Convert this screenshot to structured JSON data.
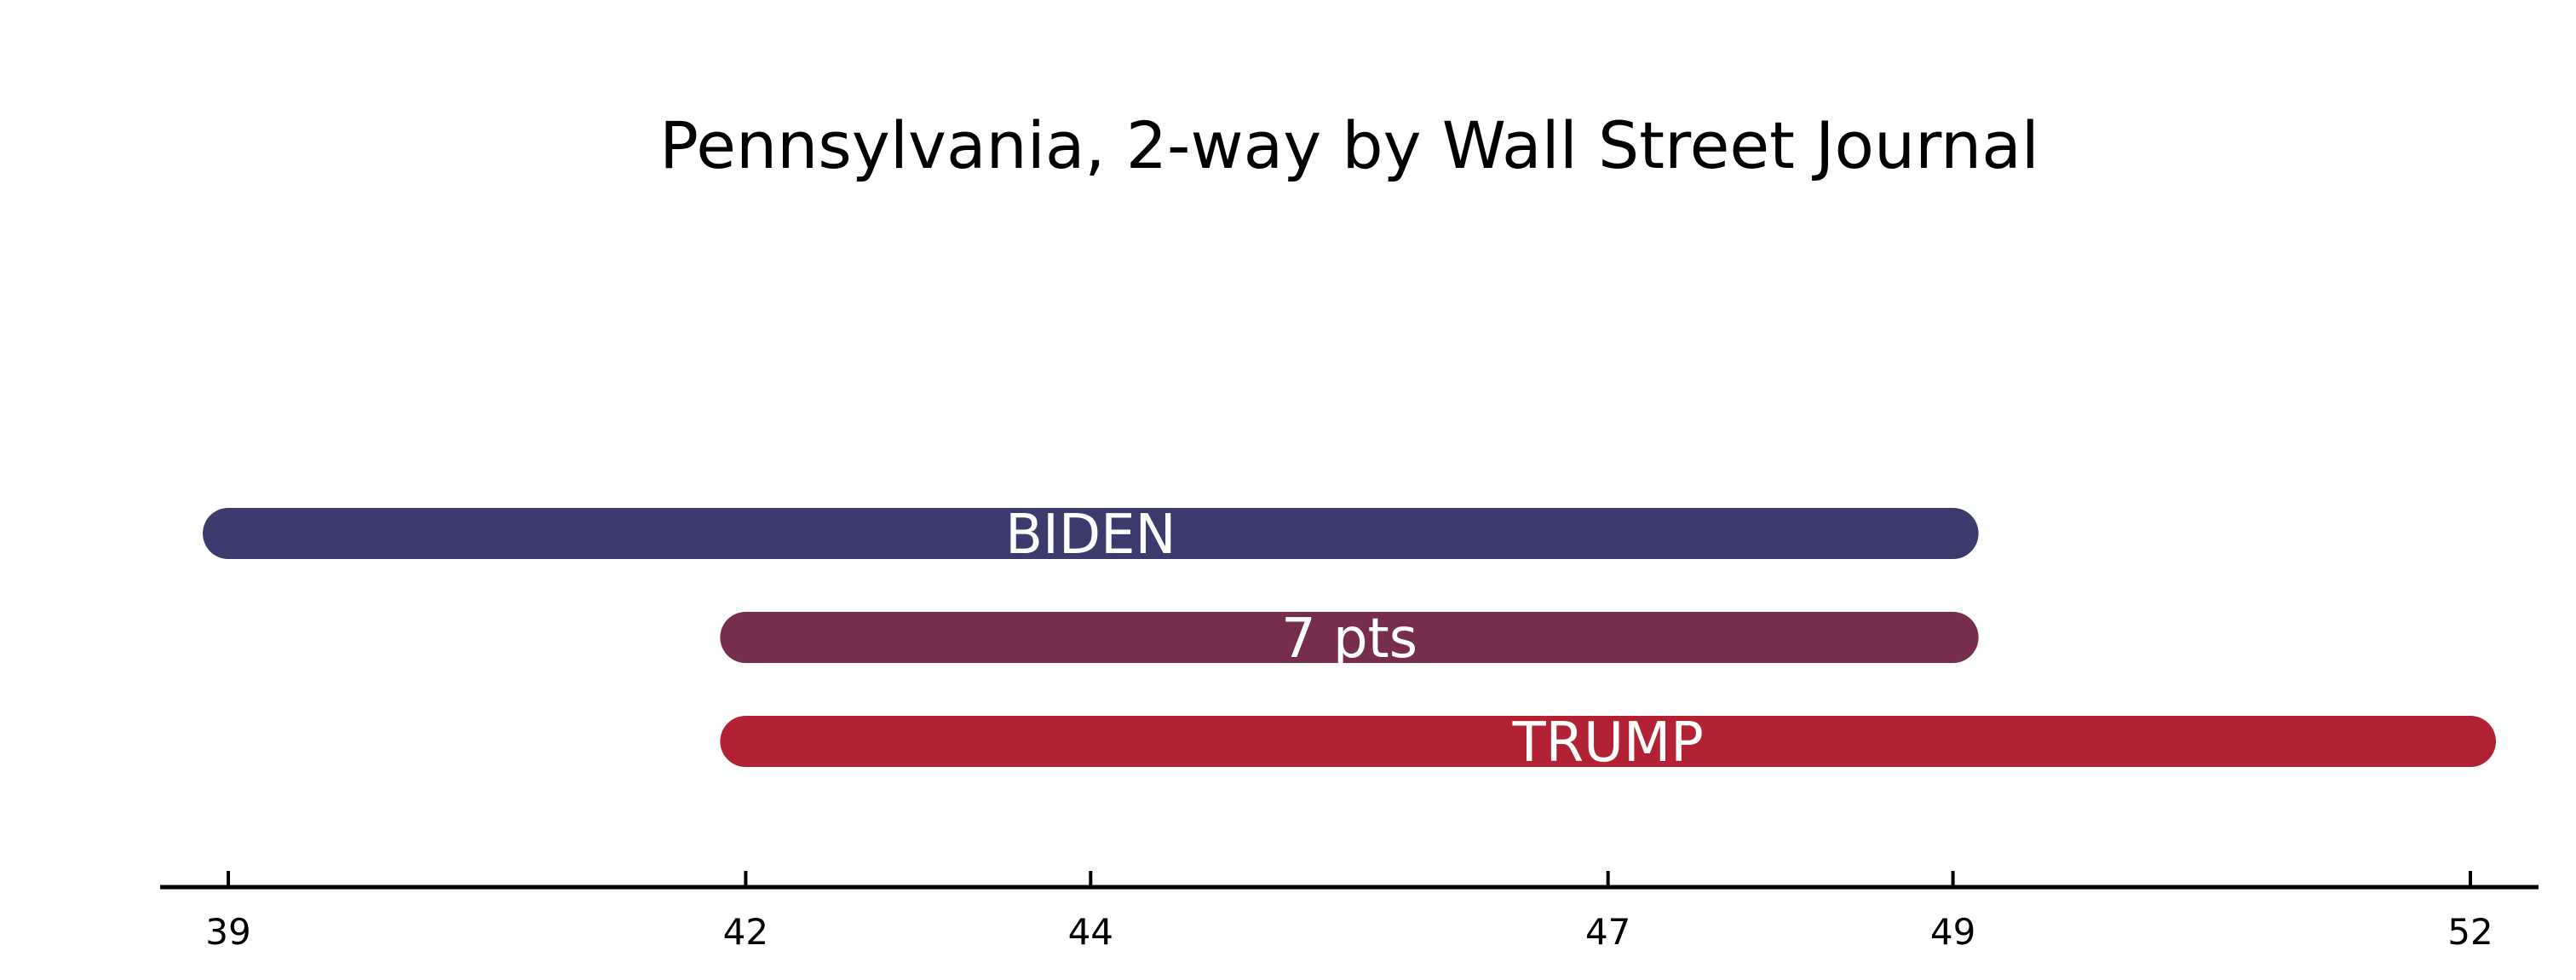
{
  "chart_data": {
    "type": "bar",
    "title": "Pennsylvania, 2-way by Wall Street Journal",
    "orientation": "horizontal-range",
    "bars": [
      {
        "label": "BIDEN",
        "start": 39,
        "end": 49,
        "color": "#3c3b6e"
      },
      {
        "label": "7 pts",
        "start": 42,
        "end": 49,
        "color": "#772d4e"
      },
      {
        "label": "TRUMP",
        "start": 42,
        "end": 52,
        "color": "#b22234"
      }
    ],
    "x_ticks": [
      39,
      42,
      44,
      47,
      49,
      52
    ],
    "xlim": [
      38.6,
      52.4
    ],
    "grid": false,
    "xlabel": "",
    "ylabel": ""
  }
}
